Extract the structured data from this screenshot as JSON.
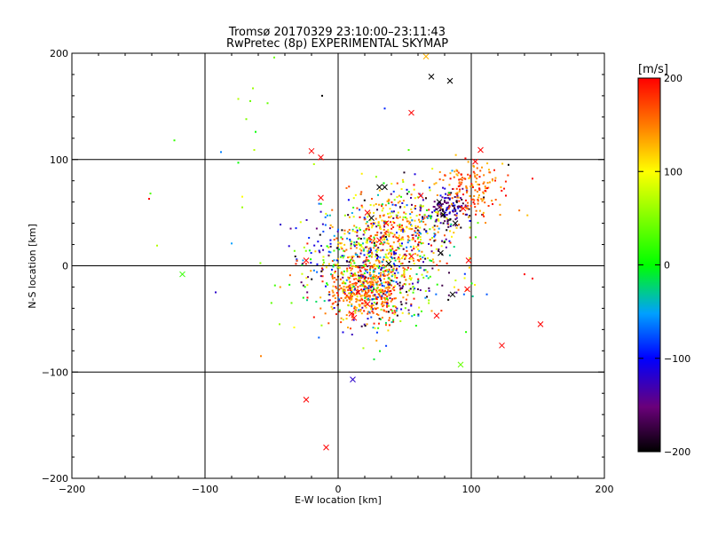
{
  "chart_data": {
    "type": "scatter",
    "title": "Tromsø 20170329 23:10:00–23:11:43",
    "subtitle": "RwPretec (8p) EXPERIMENTAL SKYMAP",
    "xlabel": "E-W location [km]",
    "ylabel": "N-S location [km]",
    "xlim": [
      -200,
      200
    ],
    "ylim": [
      -200,
      200
    ],
    "xticks": [
      -200,
      -100,
      0,
      100,
      200
    ],
    "yticks": [
      -200,
      -100,
      0,
      100,
      200
    ],
    "grid": true,
    "colorbar": {
      "label": "[m/s]",
      "min": -200,
      "max": 200,
      "ticks": [
        -200,
        -100,
        0,
        100,
        200
      ],
      "colormap": "black-purple-blue-cyan-green-yellow-red"
    },
    "markers": {
      "point": "small dot",
      "cross": "x"
    },
    "crosses": [
      {
        "x": 66,
        "y": 197,
        "v": 130
      },
      {
        "x": 70,
        "y": 178,
        "v": -200
      },
      {
        "x": 84,
        "y": 174,
        "v": -200
      },
      {
        "x": 55,
        "y": 144,
        "v": 200
      },
      {
        "x": -20,
        "y": 108,
        "v": 200
      },
      {
        "x": -13,
        "y": 102,
        "v": 200
      },
      {
        "x": 107,
        "y": 109,
        "v": 200
      },
      {
        "x": 103,
        "y": 98,
        "v": 200
      },
      {
        "x": -13,
        "y": 64,
        "v": 200
      },
      {
        "x": 31,
        "y": 74,
        "v": -200
      },
      {
        "x": 35,
        "y": 74,
        "v": -200
      },
      {
        "x": 76,
        "y": 55,
        "v": -160
      },
      {
        "x": 79,
        "y": 48,
        "v": -200
      },
      {
        "x": 88,
        "y": 40,
        "v": -200
      },
      {
        "x": 25,
        "y": 45,
        "v": -200
      },
      {
        "x": 31,
        "y": 24,
        "v": 200
      },
      {
        "x": 77,
        "y": 12,
        "v": -200
      },
      {
        "x": 76,
        "y": 60,
        "v": -200
      },
      {
        "x": 55,
        "y": 9,
        "v": 200
      },
      {
        "x": -117,
        "y": -8,
        "v": 20
      },
      {
        "x": -24,
        "y": 5,
        "v": 200
      },
      {
        "x": 98,
        "y": 5,
        "v": 200
      },
      {
        "x": 97,
        "y": -22,
        "v": 200
      },
      {
        "x": 86,
        "y": -27,
        "v": -200
      },
      {
        "x": 74,
        "y": -47,
        "v": 200
      },
      {
        "x": 152,
        "y": -55,
        "v": 200
      },
      {
        "x": 123,
        "y": -75,
        "v": 200
      },
      {
        "x": 92,
        "y": -93,
        "v": 40
      },
      {
        "x": 11,
        "y": -107,
        "v": -120
      },
      {
        "x": -24,
        "y": -126,
        "v": 200
      },
      {
        "x": -9,
        "y": -171,
        "v": 200
      },
      {
        "x": 15,
        "y": -25,
        "v": 200
      },
      {
        "x": 22,
        "y": -36,
        "v": 200
      },
      {
        "x": 10,
        "y": -45,
        "v": 200
      },
      {
        "x": 36,
        "y": 40,
        "v": 200
      },
      {
        "x": 62,
        "y": 66,
        "v": 200
      },
      {
        "x": 94,
        "y": 54,
        "v": 200
      },
      {
        "x": 38,
        "y": 2,
        "v": -200
      },
      {
        "x": 12,
        "y": -49,
        "v": 200
      },
      {
        "x": 22,
        "y": 50,
        "v": 200
      }
    ],
    "scattered_points": [
      {
        "x": -48,
        "y": 196,
        "v": 40
      },
      {
        "x": -12,
        "y": 160,
        "v": -200
      },
      {
        "x": -64,
        "y": 167,
        "v": 60
      },
      {
        "x": -75,
        "y": 157,
        "v": 70
      },
      {
        "x": -66,
        "y": 155,
        "v": 40
      },
      {
        "x": -53,
        "y": 153,
        "v": 40
      },
      {
        "x": -69,
        "y": 138,
        "v": 50
      },
      {
        "x": -62,
        "y": 126,
        "v": 0
      },
      {
        "x": -123,
        "y": 118,
        "v": 20
      },
      {
        "x": -88,
        "y": 107,
        "v": -60
      },
      {
        "x": -63,
        "y": 109,
        "v": 70
      },
      {
        "x": -75,
        "y": 97,
        "v": 0
      },
      {
        "x": 35,
        "y": 148,
        "v": -90
      },
      {
        "x": 53,
        "y": 109,
        "v": 30
      },
      {
        "x": -141,
        "y": 68,
        "v": 30
      },
      {
        "x": -142,
        "y": 63,
        "v": 200
      },
      {
        "x": -72,
        "y": 65,
        "v": 100
      },
      {
        "x": -72,
        "y": 55,
        "v": 60
      },
      {
        "x": -136,
        "y": 19,
        "v": 70
      },
      {
        "x": -80,
        "y": 21,
        "v": -50
      },
      {
        "x": -92,
        "y": -25,
        "v": -120
      },
      {
        "x": -58,
        "y": -85,
        "v": 150
      },
      {
        "x": -23,
        "y": -30,
        "v": 200
      },
      {
        "x": -35,
        "y": -35,
        "v": 40
      },
      {
        "x": -33,
        "y": -58,
        "v": 100
      },
      {
        "x": -44,
        "y": -55,
        "v": 60
      },
      {
        "x": 27,
        "y": -88,
        "v": -10
      },
      {
        "x": 140,
        "y": -8,
        "v": 200
      },
      {
        "x": 146,
        "y": -12,
        "v": 200
      },
      {
        "x": 146,
        "y": 82,
        "v": 200
      },
      {
        "x": 128,
        "y": 95,
        "v": -200
      },
      {
        "x": 126,
        "y": 66,
        "v": 200
      },
      {
        "x": 112,
        "y": 73,
        "v": 200
      },
      {
        "x": 116,
        "y": 58,
        "v": 200
      }
    ],
    "point_clusters": [
      {
        "cx": 20,
        "cy": -25,
        "sx": 13,
        "sy": 13,
        "n": 380,
        "vmin": 120,
        "vmax": 200
      },
      {
        "cx": 22,
        "cy": -10,
        "sx": 28,
        "sy": 24,
        "n": 260,
        "vmin": -200,
        "vmax": 200
      },
      {
        "cx": 42,
        "cy": 30,
        "sx": 18,
        "sy": 18,
        "n": 300,
        "vmin": 80,
        "vmax": 200
      },
      {
        "cx": 30,
        "cy": 10,
        "sx": 25,
        "sy": 28,
        "n": 220,
        "vmin": -200,
        "vmax": 200
      },
      {
        "cx": 82,
        "cy": 52,
        "sx": 9,
        "sy": 9,
        "n": 130,
        "vmin": -200,
        "vmax": -90
      },
      {
        "cx": 102,
        "cy": 70,
        "sx": 12,
        "sy": 14,
        "n": 160,
        "vmin": 120,
        "vmax": 200
      },
      {
        "cx": 60,
        "cy": 45,
        "sx": 20,
        "sy": 20,
        "n": 120,
        "vmin": -200,
        "vmax": 200
      },
      {
        "cx": 5,
        "cy": 15,
        "sx": 18,
        "sy": 20,
        "n": 120,
        "vmin": -200,
        "vmax": 200
      },
      {
        "cx": 40,
        "cy": -20,
        "sx": 25,
        "sy": 20,
        "n": 90,
        "vmin": -200,
        "vmax": 200
      }
    ]
  }
}
